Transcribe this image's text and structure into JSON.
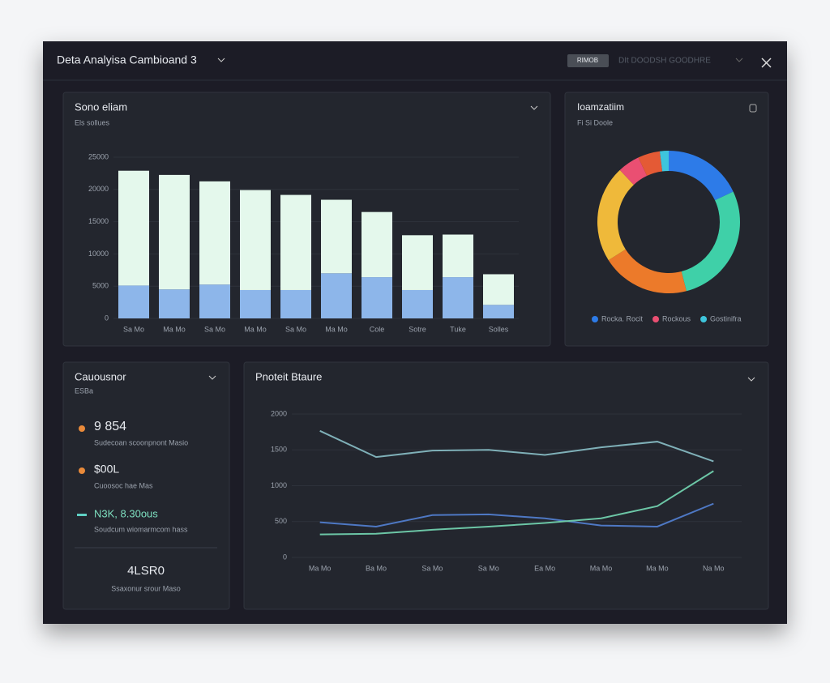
{
  "header": {
    "title": "Deta Analyisa Cambioand 3",
    "button": "RIMOB",
    "menu": "DIt DOODSH GOODHRE"
  },
  "chart_data": [
    {
      "type": "bar",
      "title": "Sono eliam",
      "subtitle": "Els sollues",
      "stacked": true,
      "grid": true,
      "categories": [
        "Sa Mo",
        "Ma Mo",
        "Sa Mo",
        "Ma Mo",
        "Sa Mo",
        "Ma Mo",
        "Cole",
        "Sotre",
        "Tuke",
        "Solles"
      ],
      "series": [
        {
          "color": "#8db6ea",
          "values": [
            5100,
            4500,
            5250,
            4400,
            4400,
            7000,
            6400,
            4400,
            6400,
            2100
          ]
        },
        {
          "color": "#e4f8ec",
          "values": [
            17800,
            17750,
            16000,
            15500,
            14750,
            11400,
            10100,
            8500,
            6600,
            4750
          ]
        }
      ],
      "ylim": [
        0,
        25000
      ],
      "yticks": [
        0,
        5000,
        10000,
        15000,
        20000,
        25000
      ]
    },
    {
      "type": "pie",
      "title": "Ioamzatiim",
      "subtitle": "Fi Si Doole",
      "categories": [
        "Rocka. Rocit",
        null,
        null,
        null,
        "Rockous",
        null,
        "Gostinifra"
      ],
      "values": [
        18,
        28,
        20,
        22,
        5,
        5,
        2
      ],
      "colors": [
        "#2d7be8",
        "#3fd0a8",
        "#ec7a2a",
        "#efb93a",
        "#ea4f72",
        "#e45a35",
        "#3ec5dc"
      ]
    },
    {
      "type": "line",
      "title": "Pnoteit Btaure",
      "grid": true,
      "categories": [
        "Ma Mo",
        "Ba Mo",
        "Sa Mo",
        "Sa Mo",
        "Ea Mo",
        "Ma Mo",
        "Ma Mo",
        "Na Mo"
      ],
      "series": [
        {
          "color": "#7fb0b8",
          "values": [
            1765,
            1400,
            1490,
            1500,
            1430,
            1535,
            1615,
            1340
          ]
        },
        {
          "color": "#4e78c4",
          "values": [
            490,
            430,
            590,
            600,
            545,
            445,
            430,
            750
          ]
        },
        {
          "color": "#6cc6a6",
          "values": [
            320,
            330,
            385,
            430,
            480,
            545,
            715,
            1205
          ]
        }
      ],
      "ylim": [
        0,
        2000
      ],
      "yticks": [
        0,
        500,
        1000,
        1500,
        2000
      ]
    }
  ],
  "stats": {
    "title": "Cauousnor",
    "subtitle": "ESBa",
    "items": [
      {
        "value": "9 854",
        "label": "Sudecoan scoonpnont Masio"
      },
      {
        "value": "$00L",
        "label": "Cuoosoc hae Mas"
      },
      {
        "value": "N3K, 8.30ous",
        "label": "Soudcum wiomarmcom hass"
      }
    ],
    "total": "4LSR0",
    "total_label": "Ssaxonur srour Maso"
  }
}
